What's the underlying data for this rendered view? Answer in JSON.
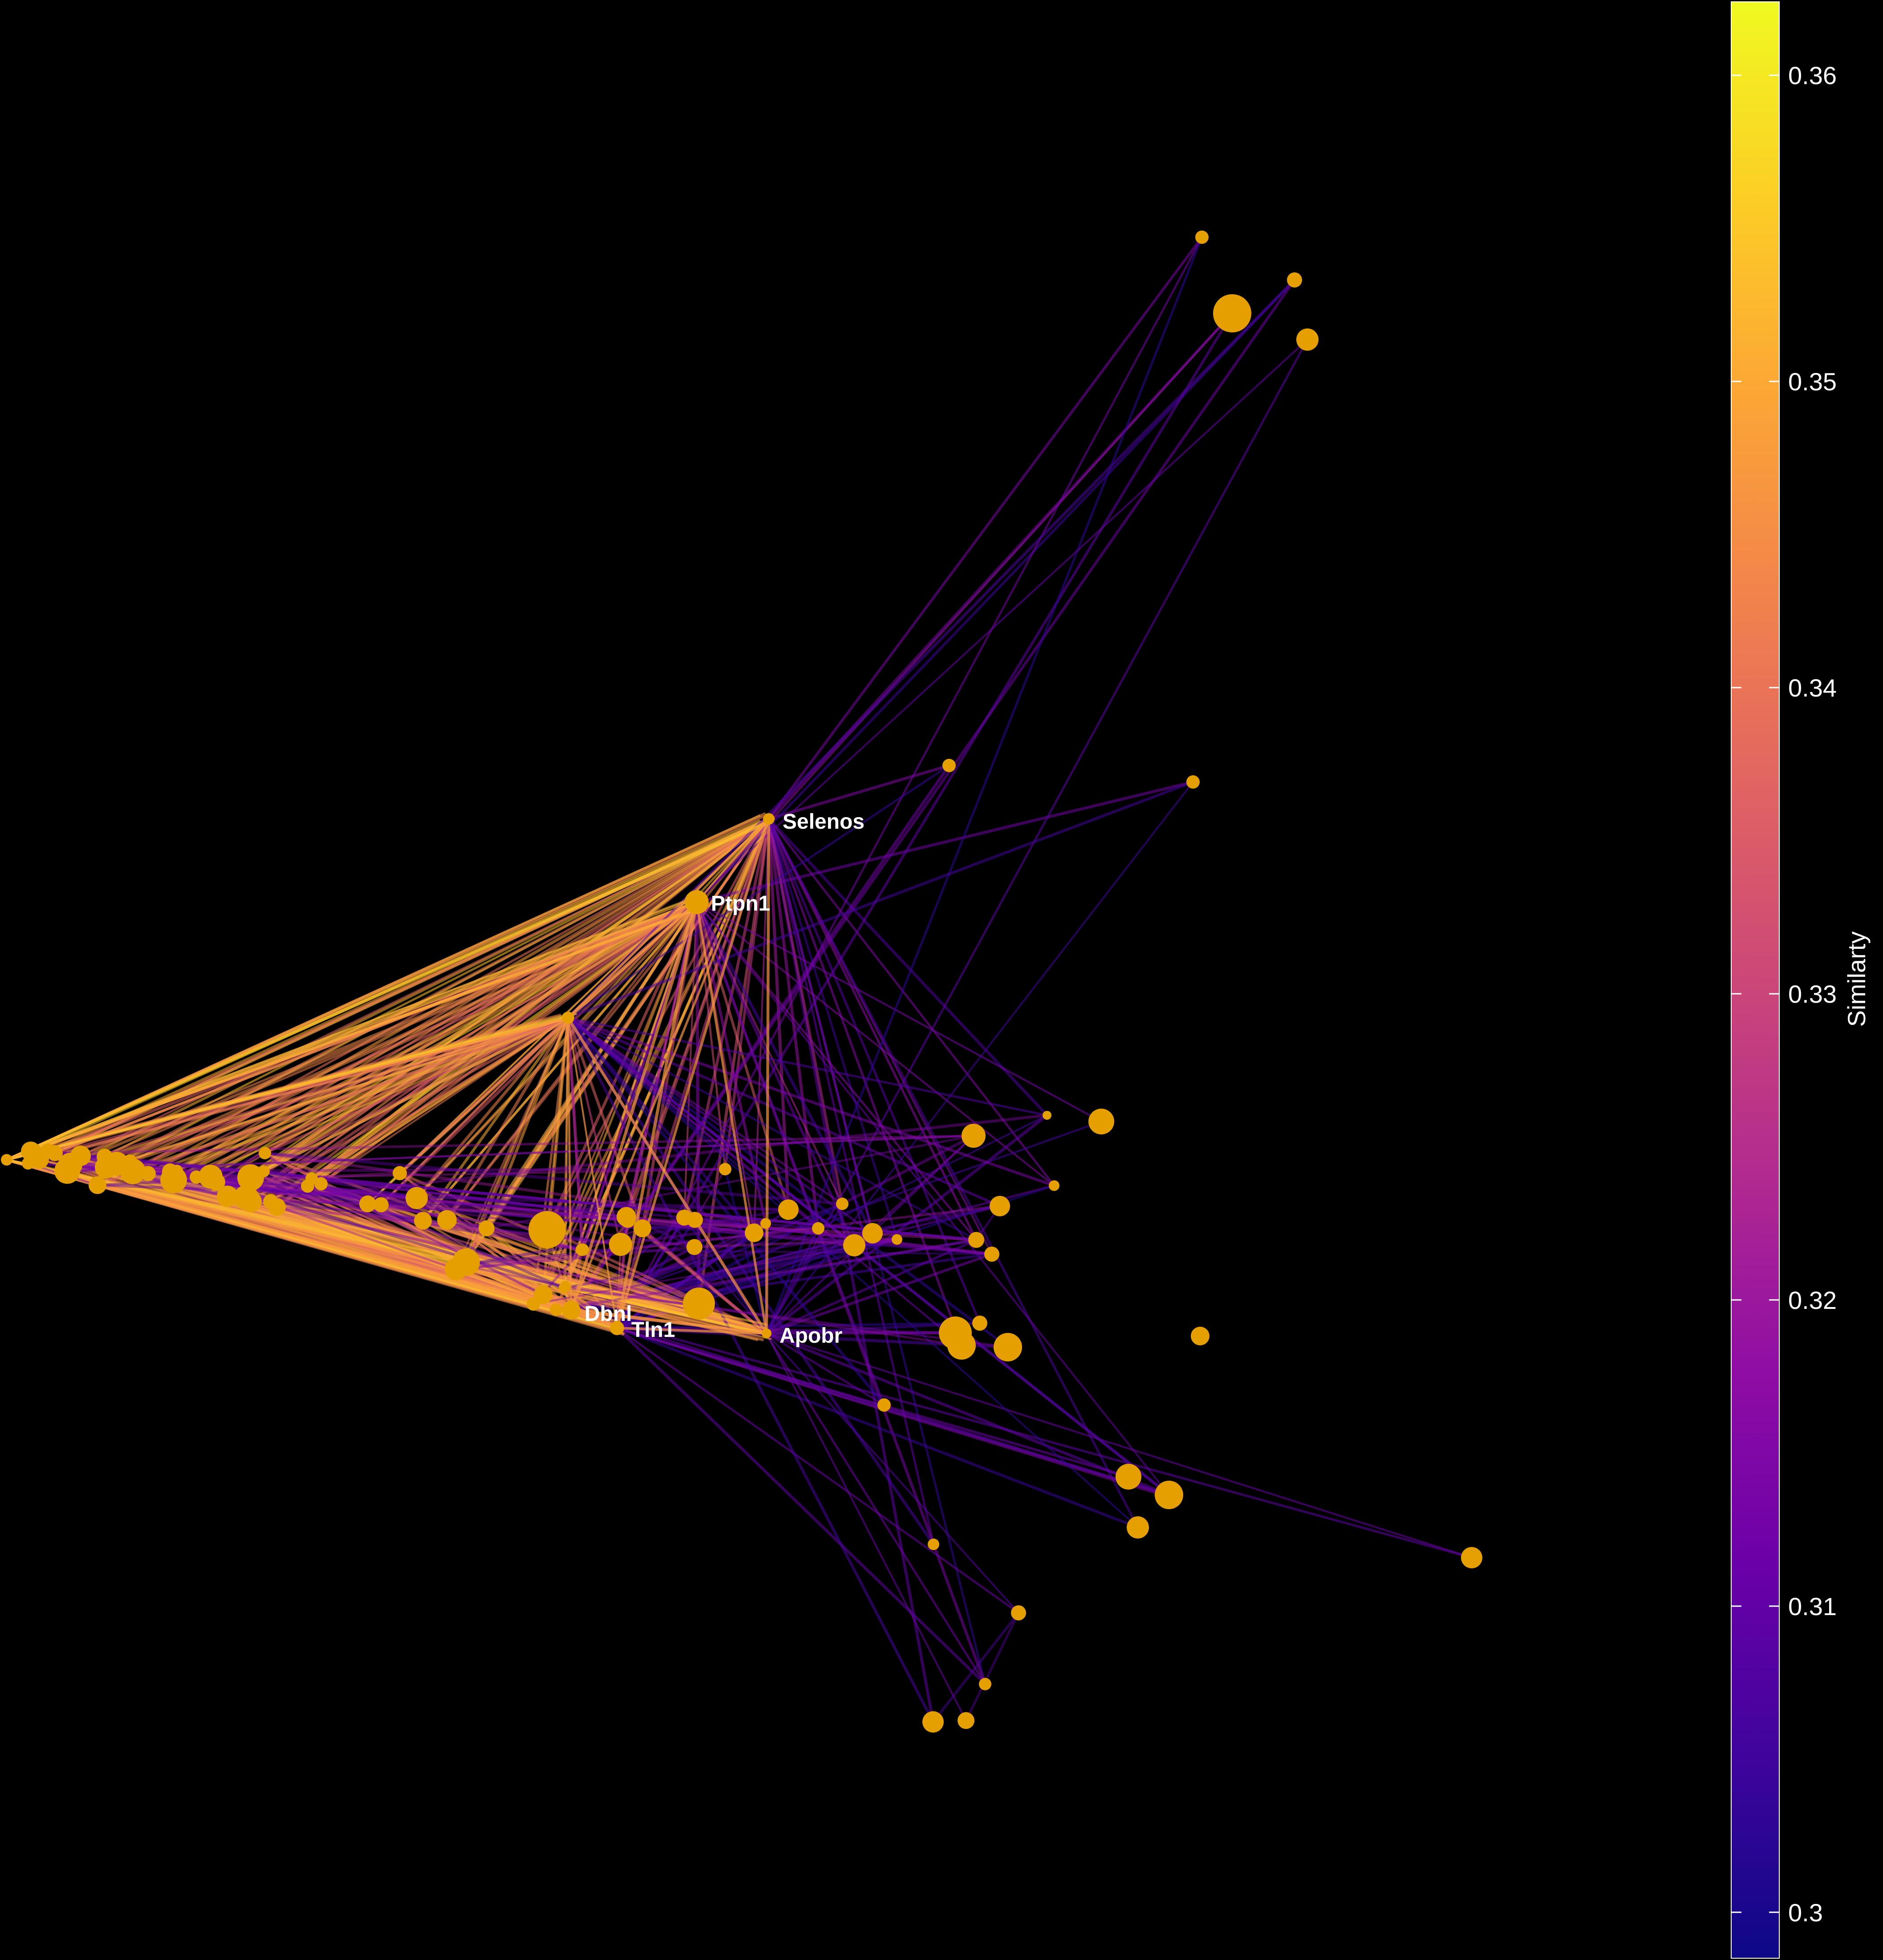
{
  "graph": {
    "node_color": "#E69F00",
    "edge_palette": [
      "#0D0887",
      "#3E049C",
      "#6A00A8",
      "#8F0DA4",
      "#B12A90",
      "#CC4778",
      "#E16462",
      "#F2844B",
      "#FCA636",
      "#FCCE25",
      "#F0F921"
    ],
    "hub_nodes": [
      {
        "id": "selenos",
        "label": "Selenos"
      },
      {
        "id": "ptpn1",
        "label": "Ptpn1"
      },
      {
        "id": "dbnl",
        "label": "Dbnl"
      },
      {
        "id": "tln1",
        "label": "Tln1"
      },
      {
        "id": "apobr",
        "label": "Apobr"
      }
    ]
  },
  "colorbar": {
    "title": "Similarty",
    "min": 0.2985,
    "max": 0.3624,
    "ticks": [
      "0.3",
      "0.31",
      "0.32",
      "0.33",
      "0.34",
      "0.35",
      "0.36"
    ],
    "tick_values": [
      0.3,
      0.31,
      0.32,
      0.33,
      0.34,
      0.35,
      0.36
    ]
  }
}
